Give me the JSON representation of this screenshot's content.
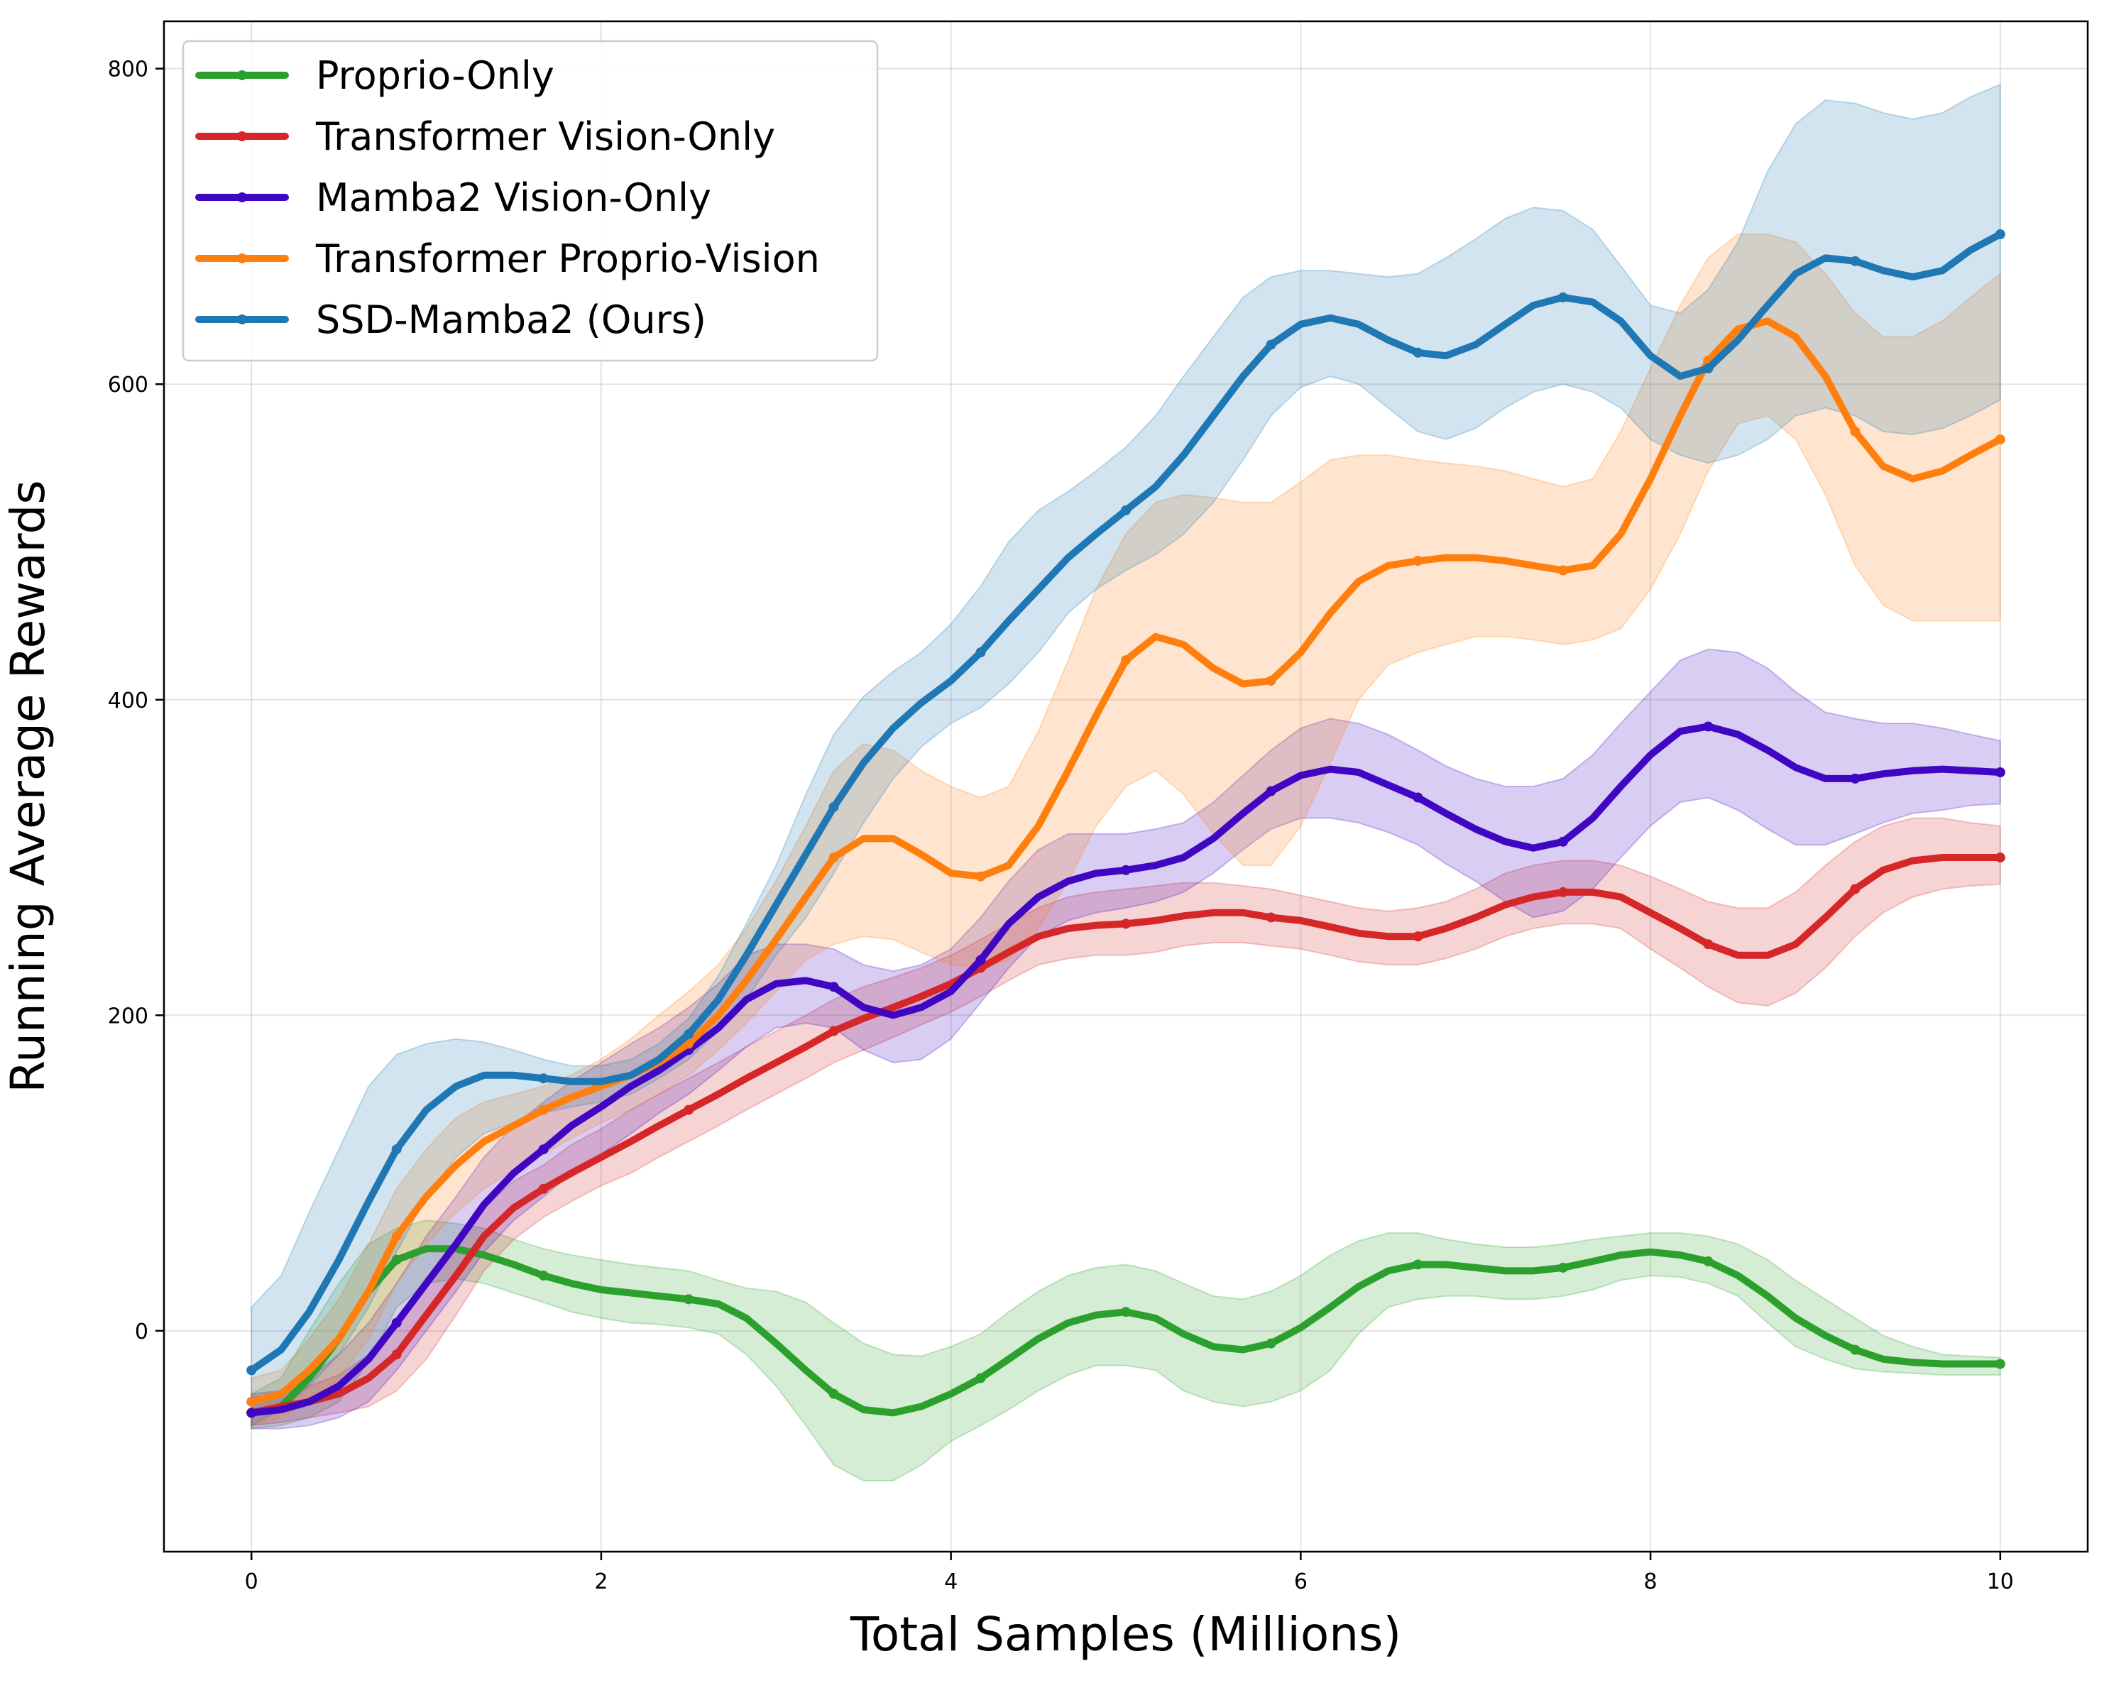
{
  "chart_data": {
    "type": "line",
    "xlabel": "Total Samples (Millions)",
    "ylabel": "Running Average Rewards",
    "xlim": [
      -0.5,
      10.5
    ],
    "ylim": [
      -140,
      830
    ],
    "xticks": [
      "0",
      "2",
      "4",
      "6",
      "8",
      "10"
    ],
    "yticks": [
      "0",
      "200",
      "400",
      "600",
      "800"
    ],
    "grid": true,
    "legend_position": "top-left",
    "x": [
      0,
      0.17,
      0.33,
      0.5,
      0.67,
      0.83,
      1.0,
      1.17,
      1.33,
      1.5,
      1.67,
      1.83,
      2.0,
      2.17,
      2.33,
      2.5,
      2.67,
      2.83,
      3.0,
      3.17,
      3.33,
      3.5,
      3.67,
      3.83,
      4.0,
      4.17,
      4.33,
      4.5,
      4.67,
      4.83,
      5.0,
      5.17,
      5.33,
      5.5,
      5.67,
      5.83,
      6.0,
      6.17,
      6.33,
      6.5,
      6.67,
      6.83,
      7.0,
      7.17,
      7.33,
      7.5,
      7.67,
      7.83,
      8.0,
      8.17,
      8.33,
      8.5,
      8.67,
      8.83,
      9.0,
      9.17,
      9.33,
      9.5,
      9.67,
      9.83,
      10.0
    ],
    "series": [
      {
        "name": "Proprio-Only",
        "color": "#2ca02c",
        "values": [
          -52,
          -48,
          -30,
          -5,
          25,
          45,
          52,
          52,
          48,
          42,
          35,
          30,
          26,
          24,
          22,
          20,
          17,
          8,
          -8,
          -25,
          -40,
          -50,
          -52,
          -48,
          -40,
          -30,
          -18,
          -5,
          5,
          10,
          12,
          8,
          -2,
          -10,
          -12,
          -8,
          2,
          15,
          28,
          38,
          42,
          42,
          40,
          38,
          38,
          40,
          44,
          48,
          50,
          48,
          44,
          35,
          22,
          8,
          -3,
          -12,
          -18,
          -20,
          -21,
          -21,
          -21
        ],
        "upper": [
          -40,
          -30,
          0,
          30,
          55,
          65,
          70,
          68,
          65,
          58,
          52,
          48,
          45,
          42,
          40,
          38,
          32,
          27,
          25,
          18,
          5,
          -8,
          -15,
          -16,
          -10,
          -2,
          12,
          25,
          35,
          40,
          42,
          38,
          30,
          22,
          20,
          25,
          35,
          48,
          57,
          62,
          62,
          58,
          55,
          53,
          53,
          55,
          58,
          60,
          62,
          62,
          60,
          55,
          45,
          32,
          20,
          8,
          -3,
          -10,
          -15,
          -16,
          -17
        ],
        "lower": [
          -62,
          -60,
          -55,
          -45,
          -20,
          15,
          30,
          33,
          30,
          24,
          18,
          12,
          8,
          5,
          4,
          2,
          -2,
          -15,
          -35,
          -60,
          -85,
          -95,
          -95,
          -85,
          -70,
          -60,
          -50,
          -38,
          -28,
          -22,
          -22,
          -25,
          -38,
          -45,
          -48,
          -45,
          -38,
          -25,
          -2,
          15,
          20,
          22,
          22,
          20,
          20,
          22,
          26,
          32,
          35,
          34,
          30,
          22,
          5,
          -10,
          -18,
          -24,
          -26,
          -27,
          -28,
          -28,
          -28
        ]
      },
      {
        "name": "Transformer Vision-Only",
        "color": "#d62728",
        "values": [
          -52,
          -48,
          -45,
          -40,
          -30,
          -15,
          10,
          35,
          60,
          78,
          90,
          100,
          110,
          120,
          130,
          140,
          150,
          160,
          170,
          180,
          190,
          198,
          205,
          212,
          220,
          230,
          240,
          250,
          255,
          257,
          258,
          260,
          263,
          265,
          265,
          262,
          260,
          256,
          252,
          250,
          250,
          255,
          262,
          270,
          275,
          278,
          278,
          275,
          265,
          255,
          245,
          238,
          238,
          245,
          262,
          280,
          292,
          298,
          300,
          300,
          300
        ],
        "upper": [
          -42,
          -40,
          -35,
          -28,
          -15,
          5,
          30,
          55,
          78,
          95,
          105,
          118,
          128,
          140,
          150,
          160,
          170,
          180,
          190,
          200,
          210,
          218,
          224,
          230,
          238,
          248,
          258,
          268,
          275,
          278,
          280,
          282,
          284,
          284,
          282,
          280,
          276,
          272,
          268,
          266,
          268,
          272,
          280,
          290,
          295,
          298,
          298,
          295,
          288,
          280,
          272,
          268,
          268,
          278,
          295,
          310,
          320,
          325,
          325,
          322,
          320
        ],
        "lower": [
          -60,
          -58,
          -55,
          -52,
          -48,
          -38,
          -18,
          10,
          38,
          58,
          72,
          82,
          92,
          100,
          110,
          120,
          130,
          140,
          150,
          160,
          170,
          178,
          186,
          194,
          202,
          212,
          222,
          232,
          236,
          238,
          238,
          240,
          244,
          246,
          246,
          244,
          242,
          238,
          234,
          232,
          232,
          236,
          242,
          250,
          255,
          258,
          258,
          255,
          242,
          230,
          218,
          208,
          206,
          214,
          230,
          250,
          265,
          275,
          280,
          282,
          283
        ]
      },
      {
        "name": "Mamba2 Vision-Only",
        "color": "#3f07c2",
        "values": [
          -52,
          -50,
          -45,
          -35,
          -18,
          5,
          30,
          55,
          80,
          100,
          115,
          130,
          142,
          155,
          165,
          178,
          192,
          210,
          220,
          222,
          218,
          205,
          200,
          205,
          215,
          235,
          258,
          275,
          285,
          290,
          292,
          295,
          300,
          312,
          328,
          342,
          352,
          356,
          354,
          346,
          338,
          328,
          318,
          310,
          306,
          310,
          325,
          345,
          365,
          380,
          383,
          378,
          368,
          357,
          350,
          350,
          353,
          355,
          356,
          355,
          354
        ],
        "upper": [
          -40,
          -38,
          -30,
          -15,
          5,
          30,
          60,
          85,
          110,
          130,
          145,
          158,
          170,
          182,
          192,
          205,
          220,
          238,
          245,
          245,
          242,
          232,
          228,
          232,
          242,
          262,
          285,
          305,
          315,
          315,
          315,
          318,
          322,
          335,
          352,
          368,
          382,
          388,
          385,
          378,
          368,
          358,
          350,
          345,
          345,
          350,
          365,
          385,
          405,
          425,
          432,
          430,
          420,
          405,
          392,
          388,
          385,
          385,
          382,
          378,
          374
        ],
        "lower": [
          -62,
          -62,
          -60,
          -55,
          -45,
          -25,
          0,
          25,
          50,
          70,
          85,
          100,
          112,
          125,
          138,
          150,
          165,
          180,
          192,
          195,
          192,
          178,
          170,
          172,
          185,
          208,
          230,
          250,
          260,
          265,
          268,
          272,
          278,
          290,
          305,
          318,
          325,
          325,
          322,
          316,
          308,
          296,
          285,
          272,
          262,
          266,
          280,
          300,
          320,
          335,
          338,
          330,
          318,
          308,
          308,
          315,
          322,
          328,
          330,
          333,
          334
        ]
      },
      {
        "name": "Transformer Proprio-Vision",
        "color": "#ff7f0e",
        "values": [
          -45,
          -40,
          -25,
          -5,
          25,
          60,
          85,
          105,
          120,
          130,
          140,
          148,
          155,
          162,
          170,
          182,
          200,
          222,
          248,
          275,
          300,
          312,
          312,
          302,
          290,
          288,
          295,
          320,
          355,
          390,
          425,
          440,
          435,
          420,
          410,
          412,
          430,
          455,
          475,
          485,
          488,
          490,
          490,
          488,
          485,
          482,
          485,
          505,
          540,
          580,
          615,
          635,
          640,
          630,
          605,
          570,
          548,
          540,
          545,
          555,
          565
        ],
        "upper": [
          -30,
          -25,
          -5,
          20,
          55,
          90,
          115,
          135,
          145,
          150,
          155,
          162,
          172,
          185,
          200,
          215,
          232,
          255,
          285,
          320,
          355,
          372,
          368,
          355,
          345,
          338,
          345,
          380,
          425,
          470,
          505,
          525,
          530,
          528,
          525,
          525,
          538,
          552,
          555,
          555,
          552,
          550,
          548,
          545,
          540,
          535,
          540,
          570,
          610,
          650,
          680,
          695,
          695,
          690,
          670,
          645,
          630,
          630,
          640,
          655,
          670
        ],
        "lower": [
          -60,
          -55,
          -45,
          -30,
          -5,
          30,
          55,
          75,
          90,
          102,
          112,
          122,
          132,
          140,
          150,
          162,
          178,
          195,
          215,
          235,
          245,
          250,
          248,
          240,
          232,
          230,
          235,
          255,
          285,
          320,
          345,
          355,
          340,
          315,
          295,
          295,
          320,
          360,
          400,
          422,
          430,
          435,
          440,
          440,
          438,
          435,
          438,
          445,
          470,
          505,
          545,
          575,
          580,
          565,
          530,
          485,
          460,
          450,
          450,
          450,
          450
        ]
      },
      {
        "name": "SSD-Mamba2 (Ours)",
        "color": "#1f77b4",
        "values": [
          -25,
          -12,
          12,
          45,
          82,
          115,
          140,
          155,
          162,
          162,
          160,
          158,
          158,
          162,
          172,
          188,
          210,
          238,
          270,
          302,
          332,
          360,
          382,
          398,
          412,
          430,
          450,
          470,
          490,
          505,
          520,
          535,
          555,
          580,
          605,
          625,
          638,
          642,
          638,
          628,
          620,
          618,
          625,
          638,
          650,
          655,
          652,
          640,
          618,
          605,
          610,
          628,
          650,
          670,
          680,
          678,
          672,
          668,
          672,
          685,
          695
        ],
        "upper": [
          15,
          35,
          75,
          115,
          155,
          175,
          182,
          185,
          183,
          178,
          172,
          168,
          168,
          172,
          182,
          198,
          225,
          258,
          295,
          340,
          378,
          402,
          418,
          430,
          448,
          472,
          500,
          520,
          532,
          545,
          560,
          580,
          605,
          630,
          655,
          668,
          672,
          672,
          670,
          668,
          670,
          680,
          692,
          705,
          712,
          710,
          698,
          675,
          650,
          645,
          660,
          690,
          735,
          765,
          780,
          778,
          772,
          768,
          772,
          782,
          790
        ],
        "lower": [
          -60,
          -50,
          -35,
          -15,
          15,
          50,
          85,
          110,
          125,
          132,
          138,
          142,
          145,
          150,
          160,
          172,
          190,
          210,
          238,
          262,
          290,
          322,
          350,
          370,
          385,
          395,
          410,
          430,
          455,
          470,
          482,
          492,
          505,
          525,
          552,
          580,
          598,
          605,
          600,
          585,
          570,
          565,
          572,
          585,
          595,
          600,
          595,
          585,
          565,
          555,
          550,
          555,
          565,
          580,
          585,
          580,
          570,
          568,
          572,
          580,
          590
        ]
      }
    ]
  }
}
